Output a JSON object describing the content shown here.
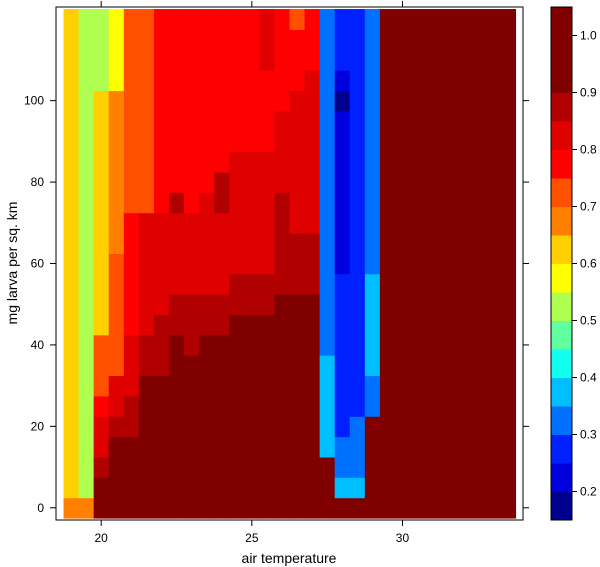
{
  "chart_data": {
    "type": "heatmap",
    "title": "",
    "xlabel": "air temperature",
    "ylabel": "mg larva per sq. km",
    "xlim": [
      18.5,
      34
    ],
    "ylim": [
      -3,
      123
    ],
    "x_ticks": [
      20,
      25,
      30
    ],
    "x_tick_labels": [
      "20",
      "25",
      "30"
    ],
    "y_ticks": [
      0,
      20,
      40,
      60,
      80,
      100
    ],
    "y_tick_labels": [
      "0",
      "20",
      "40",
      "60",
      "80",
      "100"
    ],
    "colorkey": {
      "boundaries": [
        0.15,
        0.2,
        0.25,
        0.3,
        0.35,
        0.4,
        0.45,
        0.5,
        0.55,
        0.6,
        0.65,
        0.7,
        0.75,
        0.8,
        0.85,
        0.9,
        0.95,
        1.0,
        1.05
      ],
      "colors": [
        "#00008F",
        "#0000DF",
        "#0020FF",
        "#0070FF",
        "#00BFFF",
        "#10FFEF",
        "#60FF9F",
        "#AFFF50",
        "#FFFF00",
        "#FFCF00",
        "#FF8000",
        "#FF5000",
        "#FF0000",
        "#DF0000",
        "#B00000",
        "#800000",
        "#800000",
        "#800000"
      ],
      "tick_values": [
        0.2,
        0.3,
        0.4,
        0.5,
        0.6,
        0.7,
        0.8,
        0.9,
        1.0
      ],
      "tick_labels": [
        "0.2",
        "0.3",
        "0.4",
        "0.5",
        "0.6",
        "0.7",
        "0.8",
        "0.9",
        "1.0"
      ]
    },
    "x_cell_width": 0.5,
    "y_cell_height": 5,
    "columns": [
      {
        "x": 19.0,
        "runs": [
          [
            -2.5,
            2.5,
            0.65
          ],
          [
            2.5,
            122.5,
            0.62
          ]
        ]
      },
      {
        "x": 19.5,
        "runs": [
          [
            -2.5,
            2.5,
            0.65
          ],
          [
            2.5,
            122.5,
            0.52
          ]
        ]
      },
      {
        "x": 20.0,
        "runs": [
          [
            -2.5,
            7.5,
            0.97
          ],
          [
            7.5,
            12.5,
            0.87
          ],
          [
            12.5,
            22.5,
            0.83
          ],
          [
            22.5,
            27.5,
            0.78
          ],
          [
            27.5,
            42.5,
            0.72
          ],
          [
            42.5,
            102.5,
            0.62
          ],
          [
            102.5,
            122.5,
            0.52
          ]
        ]
      },
      {
        "x": 20.5,
        "runs": [
          [
            -2.5,
            2.5,
            0.98
          ],
          [
            2.5,
            17.5,
            0.95
          ],
          [
            17.5,
            22.5,
            0.88
          ],
          [
            22.5,
            32.5,
            0.82
          ],
          [
            32.5,
            62.5,
            0.72
          ],
          [
            62.5,
            102.5,
            0.67
          ],
          [
            102.5,
            122.5,
            0.57
          ]
        ]
      },
      {
        "x": 21.0,
        "runs": [
          [
            -2.5,
            2.5,
            0.98
          ],
          [
            2.5,
            17.5,
            0.95
          ],
          [
            17.5,
            27.5,
            0.88
          ],
          [
            27.5,
            42.5,
            0.82
          ],
          [
            42.5,
            72.5,
            0.77
          ],
          [
            72.5,
            122.5,
            0.72
          ]
        ]
      },
      {
        "x": 21.5,
        "runs": [
          [
            -2.5,
            2.5,
            0.98
          ],
          [
            2.5,
            22.5,
            0.95
          ],
          [
            22.5,
            32.5,
            0.92
          ],
          [
            32.5,
            42.5,
            0.87
          ],
          [
            42.5,
            72.5,
            0.82
          ],
          [
            72.5,
            122.5,
            0.72
          ]
        ]
      },
      {
        "x": 22.0,
        "runs": [
          [
            -2.5,
            2.5,
            0.98
          ],
          [
            2.5,
            22.5,
            0.95
          ],
          [
            22.5,
            32.5,
            0.92
          ],
          [
            32.5,
            47.5,
            0.87
          ],
          [
            47.5,
            72.5,
            0.82
          ],
          [
            72.5,
            122.5,
            0.77
          ]
        ]
      },
      {
        "x": 22.5,
        "runs": [
          [
            -2.5,
            7.5,
            0.98
          ],
          [
            7.5,
            27.5,
            0.95
          ],
          [
            27.5,
            42.5,
            0.92
          ],
          [
            42.5,
            52.5,
            0.87
          ],
          [
            52.5,
            72.5,
            0.82
          ],
          [
            72.5,
            77.5,
            0.87
          ],
          [
            77.5,
            122.5,
            0.77
          ]
        ]
      },
      {
        "x": 23.0,
        "runs": [
          [
            -2.5,
            7.5,
            0.98
          ],
          [
            7.5,
            22.5,
            0.95
          ],
          [
            22.5,
            37.5,
            0.92
          ],
          [
            37.5,
            52.5,
            0.87
          ],
          [
            52.5,
            72.5,
            0.82
          ],
          [
            72.5,
            122.5,
            0.77
          ]
        ]
      },
      {
        "x": 23.5,
        "runs": [
          [
            -2.5,
            7.5,
            0.98
          ],
          [
            7.5,
            27.5,
            0.95
          ],
          [
            27.5,
            42.5,
            0.92
          ],
          [
            42.5,
            52.5,
            0.87
          ],
          [
            52.5,
            77.5,
            0.82
          ],
          [
            77.5,
            122.5,
            0.77
          ]
        ]
      },
      {
        "x": 24.0,
        "runs": [
          [
            -2.5,
            7.5,
            0.98
          ],
          [
            7.5,
            27.5,
            0.95
          ],
          [
            27.5,
            42.5,
            0.92
          ],
          [
            42.5,
            52.5,
            0.87
          ],
          [
            52.5,
            72.5,
            0.82
          ],
          [
            72.5,
            82.5,
            0.87
          ],
          [
            82.5,
            122.5,
            0.77
          ]
        ]
      },
      {
        "x": 24.5,
        "runs": [
          [
            -2.5,
            7.5,
            0.98
          ],
          [
            7.5,
            32.5,
            0.95
          ],
          [
            32.5,
            47.5,
            0.92
          ],
          [
            47.5,
            57.5,
            0.87
          ],
          [
            57.5,
            87.5,
            0.82
          ],
          [
            87.5,
            102.5,
            0.77
          ],
          [
            102.5,
            122.5,
            0.77
          ]
        ]
      },
      {
        "x": 25.0,
        "runs": [
          [
            -2.5,
            7.5,
            0.98
          ],
          [
            7.5,
            32.5,
            0.95
          ],
          [
            32.5,
            47.5,
            0.92
          ],
          [
            47.5,
            57.5,
            0.87
          ],
          [
            57.5,
            87.5,
            0.82
          ],
          [
            87.5,
            122.5,
            0.77
          ]
        ]
      },
      {
        "x": 25.5,
        "runs": [
          [
            -2.5,
            7.5,
            0.98
          ],
          [
            7.5,
            37.5,
            0.95
          ],
          [
            37.5,
            47.5,
            0.92
          ],
          [
            47.5,
            57.5,
            0.87
          ],
          [
            57.5,
            87.5,
            0.82
          ],
          [
            87.5,
            107.5,
            0.77
          ],
          [
            107.5,
            122.5,
            0.82
          ]
        ]
      },
      {
        "x": 26.0,
        "runs": [
          [
            -2.5,
            12.5,
            0.98
          ],
          [
            12.5,
            42.5,
            0.95
          ],
          [
            42.5,
            52.5,
            0.92
          ],
          [
            52.5,
            77.5,
            0.87
          ],
          [
            77.5,
            97.5,
            0.82
          ],
          [
            97.5,
            122.5,
            0.77
          ]
        ]
      },
      {
        "x": 26.5,
        "runs": [
          [
            -2.5,
            12.5,
            0.98
          ],
          [
            12.5,
            42.5,
            0.95
          ],
          [
            42.5,
            52.5,
            0.92
          ],
          [
            52.5,
            67.5,
            0.87
          ],
          [
            67.5,
            102.5,
            0.82
          ],
          [
            102.5,
            117.5,
            0.77
          ],
          [
            117.5,
            122.5,
            0.72
          ]
        ]
      },
      {
        "x": 27.0,
        "runs": [
          [
            -2.5,
            12.5,
            0.98
          ],
          [
            12.5,
            42.5,
            0.95
          ],
          [
            42.5,
            52.5,
            0.92
          ],
          [
            52.5,
            67.5,
            0.87
          ],
          [
            67.5,
            107.5,
            0.82
          ],
          [
            107.5,
            122.5,
            0.77
          ]
        ]
      },
      {
        "x": 27.5,
        "runs": [
          [
            -2.5,
            7.5,
            0.98
          ],
          [
            7.5,
            12.5,
            0.95
          ],
          [
            12.5,
            17.5,
            0.38
          ],
          [
            17.5,
            37.5,
            0.38
          ],
          [
            37.5,
            122.5,
            0.32
          ]
        ]
      },
      {
        "x": 28.0,
        "runs": [
          [
            -2.5,
            2.5,
            0.98
          ],
          [
            2.5,
            7.5,
            0.38
          ],
          [
            7.5,
            17.5,
            0.32
          ],
          [
            17.5,
            57.5,
            0.27
          ],
          [
            57.5,
            97.5,
            0.22
          ],
          [
            97.5,
            102.5,
            0.17
          ],
          [
            102.5,
            107.5,
            0.22
          ],
          [
            107.5,
            122.5,
            0.27
          ]
        ]
      },
      {
        "x": 28.5,
        "runs": [
          [
            -2.5,
            2.5,
            0.98
          ],
          [
            2.5,
            7.5,
            0.38
          ],
          [
            7.5,
            22.5,
            0.32
          ],
          [
            22.5,
            122.5,
            0.27
          ]
        ]
      },
      {
        "x": 29.0,
        "runs": [
          [
            -2.5,
            22.5,
            0.98
          ],
          [
            22.5,
            32.5,
            0.32
          ],
          [
            32.5,
            42.5,
            0.38
          ],
          [
            42.5,
            57.5,
            0.38
          ],
          [
            57.5,
            122.5,
            0.32
          ]
        ]
      },
      {
        "x": 29.5,
        "runs": [
          [
            -2.5,
            122.5,
            0.98
          ]
        ]
      },
      {
        "x": 30.0,
        "runs": [
          [
            -2.5,
            122.5,
            0.98
          ]
        ]
      },
      {
        "x": 30.5,
        "runs": [
          [
            -2.5,
            122.5,
            0.98
          ]
        ]
      },
      {
        "x": 31.0,
        "runs": [
          [
            -2.5,
            122.5,
            0.98
          ]
        ]
      },
      {
        "x": 31.5,
        "runs": [
          [
            -2.5,
            122.5,
            0.98
          ]
        ]
      },
      {
        "x": 32.0,
        "runs": [
          [
            -2.5,
            122.5,
            0.98
          ]
        ]
      },
      {
        "x": 32.5,
        "runs": [
          [
            -2.5,
            122.5,
            0.98
          ]
        ]
      },
      {
        "x": 33.0,
        "runs": [
          [
            -2.5,
            122.5,
            0.98
          ]
        ]
      },
      {
        "x": 33.5,
        "runs": [
          [
            -2.5,
            122.5,
            0.98
          ]
        ]
      }
    ]
  }
}
